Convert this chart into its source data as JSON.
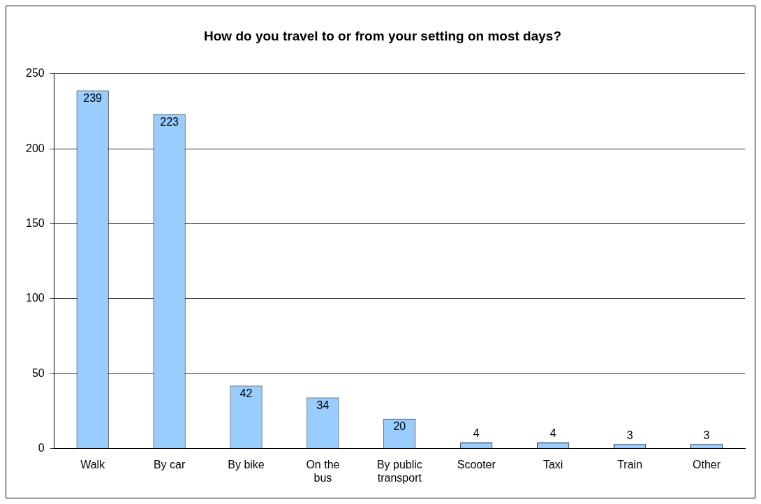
{
  "chart_data": {
    "type": "bar",
    "title": "How do you travel to or from your setting on most days?",
    "categories": [
      "Walk",
      "By car",
      "By bike",
      "On the bus",
      "By public transport",
      "Scooter",
      "Taxi",
      "Train",
      "Other"
    ],
    "values": [
      239,
      223,
      42,
      34,
      20,
      4,
      4,
      3,
      3
    ],
    "color": "#99ccff",
    "ylim": [
      0,
      250
    ],
    "yticks": [
      0,
      50,
      100,
      150,
      200,
      250
    ],
    "grid": "y",
    "legend": false,
    "data_labels": true
  }
}
